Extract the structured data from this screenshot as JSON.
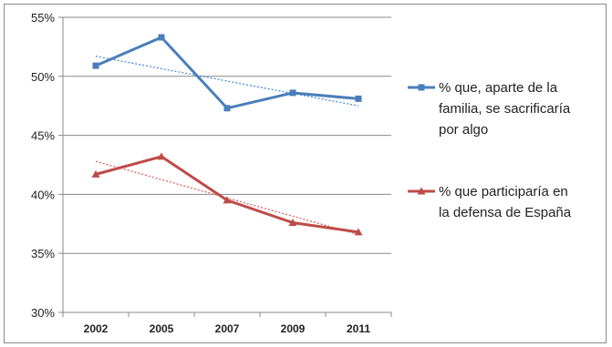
{
  "chart_data": {
    "type": "line",
    "title": "",
    "xlabel": "",
    "ylabel": "",
    "categories": [
      "2002",
      "2005",
      "2007",
      "2009",
      "2011"
    ],
    "ylim": [
      30,
      55
    ],
    "yticks": [
      30,
      35,
      40,
      45,
      50,
      55
    ],
    "ytick_labels": [
      "30%",
      "35%",
      "40%",
      "45%",
      "50%",
      "55%"
    ],
    "grid": "horizontal",
    "legend_position": "right",
    "series": [
      {
        "name": "% que, aparte de la familia, se sacrificaría por algo",
        "legend_lines": [
          "% que, aparte de la",
          "familia, se sacrificaría",
          "por algo"
        ],
        "values": [
          50.9,
          53.3,
          47.3,
          48.6,
          48.1
        ],
        "color": "#4a7ebb",
        "marker": "square",
        "trendline": {
          "style": "dotted",
          "color": "#4a90d9",
          "start": 51.7,
          "end": 47.5
        }
      },
      {
        "name": "% que participaría en la defensa de España",
        "legend_lines": [
          "% que participaría en",
          "la defensa de España"
        ],
        "values": [
          41.7,
          43.2,
          39.5,
          37.6,
          36.8
        ],
        "color": "#be4b48",
        "marker": "triangle",
        "trendline": {
          "style": "dotted",
          "color": "#e06060",
          "start": 42.8,
          "end": 36.6
        }
      }
    ]
  }
}
